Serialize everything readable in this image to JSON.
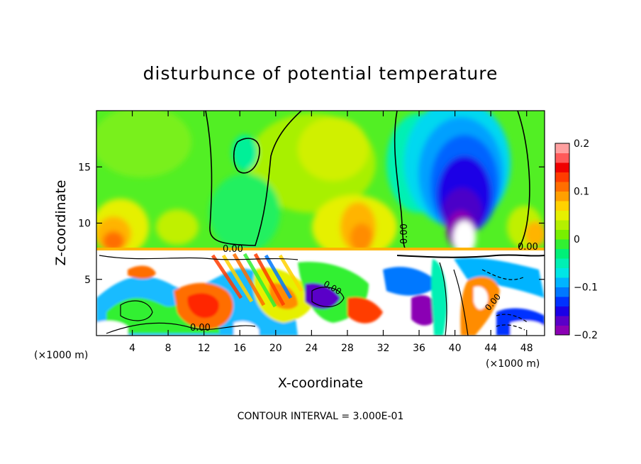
{
  "chart_data": {
    "type": "heatmap",
    "title": "disturbunce of potential temperature",
    "xlabel": "X-coordinate",
    "ylabel": "Z-coordinate",
    "x_unit_left": "(×1000 m)",
    "x_unit_right": "(×1000 m)",
    "xlim": [
      0,
      50
    ],
    "ylim": [
      0,
      20
    ],
    "x_ticks": [
      4,
      8,
      12,
      16,
      20,
      24,
      28,
      32,
      36,
      40,
      44,
      48
    ],
    "y_ticks": [
      5,
      10,
      15
    ],
    "colorbar": {
      "min": -0.2,
      "max": 0.2,
      "tick_values": [
        0.2,
        0.1,
        0,
        -0.1,
        -0.2
      ],
      "tick_labels": [
        "0.2",
        "0.1",
        "0",
        "−0.1",
        "−0.2"
      ],
      "colors": [
        "#8b00b4",
        "#5a00c8",
        "#1a00e6",
        "#0032ff",
        "#0078ff",
        "#00b4ff",
        "#00e6e6",
        "#00f0b4",
        "#00f078",
        "#32f032",
        "#78f000",
        "#b4f000",
        "#e6f000",
        "#ffd200",
        "#ffa000",
        "#ff6e00",
        "#ff3c00",
        "#f00000",
        "#ff5a5a",
        "#ffa0a0"
      ]
    },
    "contour_labels": [
      "0.00",
      "0.00",
      "0.00",
      "0.00",
      "0.00",
      "0.00"
    ],
    "contour_interval_text": "CONTOUR INTERVAL = 3.000E-01"
  }
}
